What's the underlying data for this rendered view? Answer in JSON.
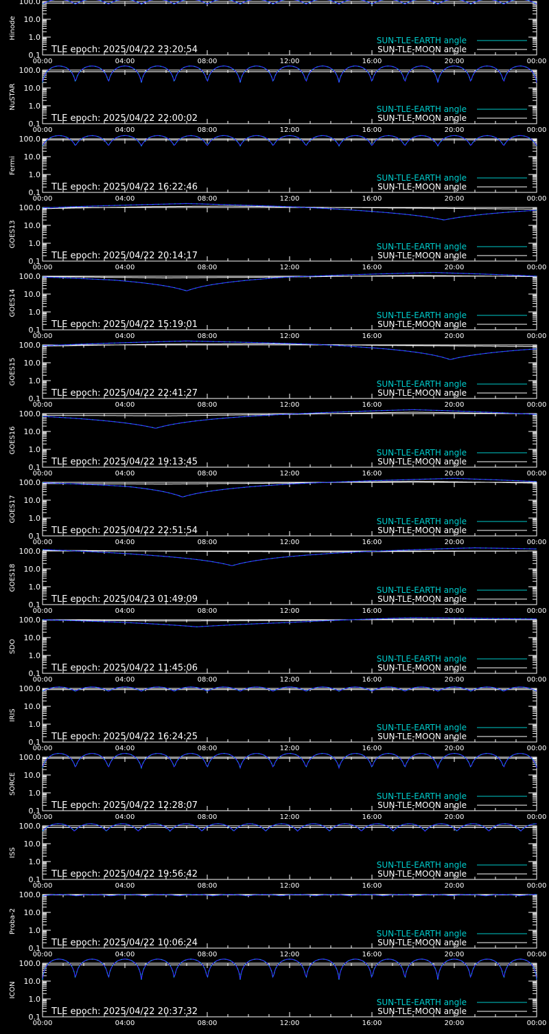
{
  "colors": {
    "background": "#000000",
    "axes": "#ffffff",
    "earth": "#00cccc",
    "moon": "#ffffff",
    "sun_earth_line": "#3333ff"
  },
  "legend": {
    "earth_label": "SUN-TLE-EARTH angle",
    "moon_label": "SUN-TLE-MOON angle"
  },
  "chart_data": [
    {
      "type": "line",
      "ylabel": "Hinode",
      "epoch_text": "TLE epoch: 2025/04/22 23:20:54",
      "x_ticks": [
        "00:00",
        "04:00",
        "08:00",
        "12:00",
        "16:00",
        "20:00",
        "00:00"
      ],
      "y_ticks": [
        "100.0",
        "10.0",
        "1.0",
        "0.1"
      ],
      "y_scale": "log",
      "y_range": [
        0.1,
        100
      ],
      "x_range_hours": [
        0,
        24
      ],
      "orbits": 15,
      "earth_min": 70,
      "earth_max": 130,
      "moon_curve": [
        [
          0,
          80
        ],
        [
          24,
          80
        ]
      ]
    },
    {
      "type": "line",
      "ylabel": "NuSTAR",
      "epoch_text": "TLE epoch: 2025/04/22 22:00:02",
      "x_ticks": [
        "00:00",
        "04:00",
        "08:00",
        "12:00",
        "16:00",
        "20:00",
        "00:00"
      ],
      "y_ticks": [
        "100.0",
        "10.0",
        "1.0",
        "0.1"
      ],
      "y_scale": "log",
      "y_range": [
        0.1,
        100
      ],
      "x_range_hours": [
        0,
        24
      ],
      "orbits": 15,
      "earth_min": 20,
      "earth_max": 170,
      "moon_curve": [
        [
          0,
          80
        ],
        [
          24,
          80
        ]
      ]
    },
    {
      "type": "line",
      "ylabel": "Fermi",
      "epoch_text": "TLE epoch: 2025/04/22 16:22:46",
      "x_ticks": [
        "00:00",
        "04:00",
        "08:00",
        "12:00",
        "16:00",
        "20:00",
        "00:00"
      ],
      "y_ticks": [
        "100.0",
        "10.0",
        "1.0",
        "0.1"
      ],
      "y_scale": "log",
      "y_range": [
        0.1,
        100
      ],
      "x_range_hours": [
        0,
        24
      ],
      "orbits": 15,
      "earth_min": 40,
      "earth_max": 150,
      "moon_curve": [
        [
          0,
          85
        ],
        [
          24,
          85
        ]
      ]
    },
    {
      "type": "line",
      "ylabel": "GOES13",
      "epoch_text": "TLE epoch: 2025/04/22 20:14:17",
      "x_ticks": [
        "00:00",
        "04:00",
        "08:00",
        "12:00",
        "16:00",
        "20:00",
        "00:00"
      ],
      "y_ticks": [
        "100.0",
        "10.0",
        "1.0",
        "0.1"
      ],
      "y_scale": "log",
      "y_range": [
        0.1,
        100
      ],
      "x_range_hours": [
        0,
        24
      ],
      "orbits": 0,
      "earth_min": 20,
      "earth_max": 170,
      "earth_curve": [
        [
          0,
          95
        ],
        [
          7,
          165
        ],
        [
          12,
          110
        ],
        [
          16,
          60
        ],
        [
          19.5,
          20
        ],
        [
          24,
          70
        ]
      ],
      "moon_curve": [
        [
          0,
          85
        ],
        [
          5,
          110
        ],
        [
          9,
          120
        ],
        [
          14,
          100
        ],
        [
          24,
          80
        ]
      ]
    },
    {
      "type": "line",
      "ylabel": "GOES14",
      "epoch_text": "TLE epoch: 2025/04/22 15:19:01",
      "x_ticks": [
        "00:00",
        "04:00",
        "08:00",
        "12:00",
        "16:00",
        "20:00",
        "00:00"
      ],
      "y_ticks": [
        "100.0",
        "10.0",
        "1.0",
        "0.1"
      ],
      "y_scale": "log",
      "y_range": [
        0.1,
        100
      ],
      "x_range_hours": [
        0,
        24
      ],
      "orbits": 0,
      "earth_min": 15,
      "earth_max": 170,
      "earth_curve": [
        [
          0,
          90
        ],
        [
          3.5,
          60
        ],
        [
          7,
          15
        ],
        [
          12,
          90
        ],
        [
          19,
          160
        ],
        [
          24,
          100
        ]
      ],
      "moon_curve": [
        [
          0,
          95
        ],
        [
          6,
          80
        ],
        [
          12,
          90
        ],
        [
          18,
          110
        ],
        [
          24,
          95
        ]
      ]
    },
    {
      "type": "line",
      "ylabel": "GOES15",
      "epoch_text": "TLE epoch: 2025/04/22 22:41:27",
      "x_ticks": [
        "00:00",
        "04:00",
        "08:00",
        "12:00",
        "16:00",
        "20:00",
        "00:00"
      ],
      "y_ticks": [
        "100.0",
        "10.0",
        "1.0",
        "0.1"
      ],
      "y_scale": "log",
      "y_range": [
        0.1,
        100
      ],
      "x_range_hours": [
        0,
        24
      ],
      "orbits": 0,
      "earth_min": 15,
      "earth_max": 170,
      "earth_curve": [
        [
          0,
          90
        ],
        [
          7,
          165
        ],
        [
          13,
          110
        ],
        [
          17,
          55
        ],
        [
          19.8,
          15
        ],
        [
          24,
          60
        ]
      ],
      "moon_curve": [
        [
          0,
          85
        ],
        [
          6,
          110
        ],
        [
          11,
          115
        ],
        [
          16,
          95
        ],
        [
          24,
          80
        ]
      ]
    },
    {
      "type": "line",
      "ylabel": "GOES16",
      "epoch_text": "TLE epoch: 2025/04/22 19:13:45",
      "x_ticks": [
        "00:00",
        "04:00",
        "08:00",
        "12:00",
        "16:00",
        "20:00",
        "00:00"
      ],
      "y_ticks": [
        "100.0",
        "10.0",
        "1.0",
        "0.1"
      ],
      "y_scale": "log",
      "y_range": [
        0.1,
        100
      ],
      "x_range_hours": [
        0,
        24
      ],
      "orbits": 0,
      "earth_min": 15,
      "earth_max": 170,
      "earth_curve": [
        [
          0,
          70
        ],
        [
          3,
          40
        ],
        [
          5.5,
          15
        ],
        [
          10,
          70
        ],
        [
          18,
          165
        ],
        [
          24,
          90
        ]
      ],
      "moon_curve": [
        [
          0,
          80
        ],
        [
          6,
          75
        ],
        [
          12,
          90
        ],
        [
          18,
          120
        ],
        [
          24,
          95
        ]
      ]
    },
    {
      "type": "line",
      "ylabel": "GOES17",
      "epoch_text": "TLE epoch: 2025/04/22 22:51:54",
      "x_ticks": [
        "00:00",
        "04:00",
        "08:00",
        "12:00",
        "16:00",
        "20:00",
        "00:00"
      ],
      "y_ticks": [
        "100.0",
        "10.0",
        "1.0",
        "0.1"
      ],
      "y_scale": "log",
      "y_range": [
        0.1,
        100
      ],
      "x_range_hours": [
        0,
        24
      ],
      "orbits": 0,
      "earth_min": 15,
      "earth_max": 170,
      "earth_curve": [
        [
          0,
          95
        ],
        [
          4,
          60
        ],
        [
          6.8,
          15
        ],
        [
          12,
          80
        ],
        [
          20,
          165
        ],
        [
          24,
          110
        ]
      ],
      "moon_curve": [
        [
          0,
          85
        ],
        [
          6,
          80
        ],
        [
          12,
          90
        ],
        [
          18,
          115
        ],
        [
          24,
          90
        ]
      ]
    },
    {
      "type": "line",
      "ylabel": "GOES18",
      "epoch_text": "TLE epoch: 2025/04/23 01:49:09",
      "x_ticks": [
        "00:00",
        "04:00",
        "08:00",
        "12:00",
        "16:00",
        "20:00",
        "00:00"
      ],
      "y_ticks": [
        "100.0",
        "10.0",
        "1.0",
        "0.1"
      ],
      "y_scale": "log",
      "y_range": [
        0.1,
        100
      ],
      "x_range_hours": [
        0,
        24
      ],
      "orbits": 0,
      "earth_min": 15,
      "earth_max": 170,
      "earth_curve": [
        [
          0,
          120
        ],
        [
          5,
          60
        ],
        [
          9.2,
          15
        ],
        [
          15,
          85
        ],
        [
          21,
          150
        ],
        [
          24,
          130
        ]
      ],
      "moon_curve": [
        [
          0,
          110
        ],
        [
          8,
          95
        ],
        [
          14,
          90
        ],
        [
          24,
          100
        ]
      ]
    },
    {
      "type": "line",
      "ylabel": "SDO",
      "epoch_text": "TLE epoch: 2025/04/22 11:45:06",
      "x_ticks": [
        "00:00",
        "04:00",
        "08:00",
        "12:00",
        "16:00",
        "20:00",
        "00:00"
      ],
      "y_ticks": [
        "100.0",
        "10.0",
        "1.0",
        "0.1"
      ],
      "y_scale": "log",
      "y_range": [
        0.1,
        100
      ],
      "x_range_hours": [
        0,
        24
      ],
      "orbits": 0,
      "earth_min": 40,
      "earth_max": 150,
      "earth_curve": [
        [
          0,
          100
        ],
        [
          4,
          70
        ],
        [
          7.5,
          40
        ],
        [
          12,
          70
        ],
        [
          18,
          130
        ],
        [
          24,
          110
        ]
      ],
      "moon_curve": [
        [
          0,
          95
        ],
        [
          6,
          85
        ],
        [
          12,
          90
        ],
        [
          18,
          110
        ],
        [
          24,
          100
        ]
      ]
    },
    {
      "type": "line",
      "ylabel": "IRIS",
      "epoch_text": "TLE epoch: 2025/04/22 16:24:25",
      "x_ticks": [
        "00:00",
        "04:00",
        "08:00",
        "12:00",
        "16:00",
        "20:00",
        "00:00"
      ],
      "y_ticks": [
        "100.0",
        "10.0",
        "1.0",
        "0.1"
      ],
      "y_scale": "log",
      "y_range": [
        0.1,
        100
      ],
      "x_range_hours": [
        0,
        24
      ],
      "orbits": 15,
      "earth_min": 70,
      "earth_max": 120,
      "moon_curve": [
        [
          0,
          85
        ],
        [
          24,
          85
        ]
      ]
    },
    {
      "type": "line",
      "ylabel": "SORCE",
      "epoch_text": "TLE epoch: 2025/04/22 12:28:07",
      "x_ticks": [
        "00:00",
        "04:00",
        "08:00",
        "12:00",
        "16:00",
        "20:00",
        "00:00"
      ],
      "y_ticks": [
        "100.0",
        "10.0",
        "1.0",
        "0.1"
      ],
      "y_scale": "log",
      "y_range": [
        0.1,
        100
      ],
      "x_range_hours": [
        0,
        24
      ],
      "orbits": 15,
      "earth_min": 25,
      "earth_max": 160,
      "moon_curve": [
        [
          0,
          85
        ],
        [
          24,
          85
        ]
      ]
    },
    {
      "type": "line",
      "ylabel": "ISS",
      "epoch_text": "TLE epoch: 2025/04/22 19:56:42",
      "x_ticks": [
        "00:00",
        "04:00",
        "08:00",
        "12:00",
        "16:00",
        "20:00",
        "00:00"
      ],
      "y_ticks": [
        "100.0",
        "10.0",
        "1.0",
        "0.1"
      ],
      "y_scale": "log",
      "y_range": [
        0.1,
        100
      ],
      "x_range_hours": [
        0,
        24
      ],
      "orbits": 15.5,
      "earth_min": 50,
      "earth_max": 130,
      "moon_curve": [
        [
          0,
          80
        ],
        [
          24,
          80
        ]
      ]
    },
    {
      "type": "line",
      "ylabel": "Proba-2",
      "epoch_text": "TLE epoch: 2025/04/22 10:06:24",
      "x_ticks": [
        "00:00",
        "04:00",
        "08:00",
        "12:00",
        "16:00",
        "20:00",
        "00:00"
      ],
      "y_ticks": [
        "100.0",
        "10.0",
        "1.0",
        "0.1"
      ],
      "y_scale": "log",
      "y_range": [
        0.1,
        100
      ],
      "x_range_hours": [
        0,
        24
      ],
      "orbits": 14.5,
      "earth_min": 85,
      "earth_max": 100,
      "moon_curve": [
        [
          0,
          95
        ],
        [
          24,
          95
        ]
      ]
    },
    {
      "type": "line",
      "ylabel": "ICON",
      "epoch_text": "TLE epoch: 2025/04/22 20:37:32",
      "x_ticks": [
        "00:00",
        "04:00",
        "08:00",
        "12:00",
        "16:00",
        "20:00",
        "00:00"
      ],
      "y_ticks": [
        "100.0",
        "10.0",
        "1.0",
        "0.1"
      ],
      "y_scale": "log",
      "y_range": [
        0.1,
        100
      ],
      "x_range_hours": [
        0,
        24
      ],
      "orbits": 15,
      "earth_min": 12,
      "earth_max": 170,
      "moon_curve": [
        [
          0,
          80
        ],
        [
          24,
          80
        ]
      ]
    }
  ]
}
